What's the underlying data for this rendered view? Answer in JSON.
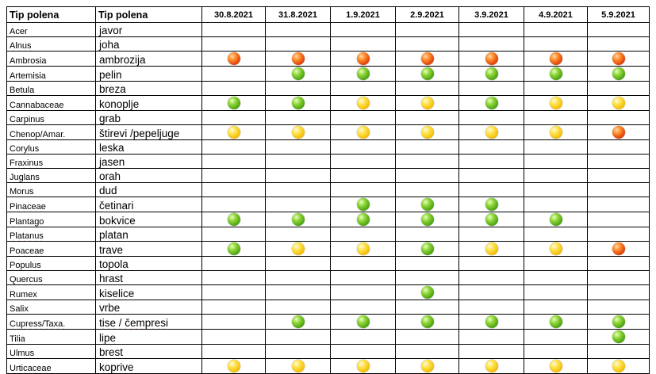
{
  "header": {
    "latin": "Tip polena",
    "local": "Tip polena",
    "dates": [
      "30.8.2021",
      "31.8.2021",
      "1.9.2021",
      "2.9.2021",
      "3.9.2021",
      "4.9.2021",
      "5.9.2021"
    ]
  },
  "legend_colors": {
    "high": "#e8501a",
    "medium": "#f7c91c",
    "low": "#5cb31a"
  },
  "rows": [
    {
      "latin": "Acer",
      "local": "javor",
      "levels": [
        "",
        "",
        "",
        "",
        "",
        "",
        ""
      ]
    },
    {
      "latin": "Alnus",
      "local": "joha",
      "levels": [
        "",
        "",
        "",
        "",
        "",
        "",
        ""
      ]
    },
    {
      "latin": "Ambrosia",
      "local": "ambrozija",
      "levels": [
        "high",
        "high",
        "high",
        "high",
        "high",
        "high",
        "high"
      ]
    },
    {
      "latin": "Artemisia",
      "local": "pelin",
      "levels": [
        "",
        "low",
        "low",
        "low",
        "low",
        "low",
        "low"
      ]
    },
    {
      "latin": "Betula",
      "local": "breza",
      "levels": [
        "",
        "",
        "",
        "",
        "",
        "",
        ""
      ]
    },
    {
      "latin": "Cannabaceae",
      "local": "konoplje",
      "levels": [
        "low",
        "low",
        "medium",
        "medium",
        "low",
        "medium",
        "medium"
      ]
    },
    {
      "latin": "Carpinus",
      "local": "grab",
      "levels": [
        "",
        "",
        "",
        "",
        "",
        "",
        ""
      ]
    },
    {
      "latin": "Chenop/Amar.",
      "local": "štirevi /pepeljuge",
      "levels": [
        "medium",
        "medium",
        "medium",
        "medium",
        "medium",
        "medium",
        "high"
      ]
    },
    {
      "latin": "Corylus",
      "local": "leska",
      "levels": [
        "",
        "",
        "",
        "",
        "",
        "",
        ""
      ]
    },
    {
      "latin": "Fraxinus",
      "local": "jasen",
      "levels": [
        "",
        "",
        "",
        "",
        "",
        "",
        ""
      ]
    },
    {
      "latin": "Juglans",
      "local": "orah",
      "levels": [
        "",
        "",
        "",
        "",
        "",
        "",
        ""
      ]
    },
    {
      "latin": "Morus",
      "local": "dud",
      "levels": [
        "",
        "",
        "",
        "",
        "",
        "",
        ""
      ]
    },
    {
      "latin": "Pinaceae",
      "local": "četinari",
      "levels": [
        "",
        "",
        "low",
        "low",
        "low",
        "",
        ""
      ]
    },
    {
      "latin": "Plantago",
      "local": "bokvice",
      "levels": [
        "low",
        "low",
        "low",
        "low",
        "low",
        "low",
        ""
      ]
    },
    {
      "latin": "Platanus",
      "local": "platan",
      "levels": [
        "",
        "",
        "",
        "",
        "",
        "",
        ""
      ]
    },
    {
      "latin": "Poaceae",
      "local": "trave",
      "levels": [
        "low",
        "medium",
        "medium",
        "low",
        "medium",
        "medium",
        "high"
      ]
    },
    {
      "latin": "Populus",
      "local": "topola",
      "levels": [
        "",
        "",
        "",
        "",
        "",
        "",
        ""
      ]
    },
    {
      "latin": "Quercus",
      "local": "hrast",
      "levels": [
        "",
        "",
        "",
        "",
        "",
        "",
        ""
      ]
    },
    {
      "latin": "Rumex",
      "local": "kiselice",
      "levels": [
        "",
        "",
        "",
        "low",
        "",
        "",
        ""
      ]
    },
    {
      "latin": "Salix",
      "local": "vrbe",
      "levels": [
        "",
        "",
        "",
        "",
        "",
        "",
        ""
      ]
    },
    {
      "latin": "Cupress/Taxa.",
      "local": "tise / čempresi",
      "levels": [
        "",
        "low",
        "low",
        "low",
        "low",
        "low",
        "low"
      ]
    },
    {
      "latin": "Tilia",
      "local": "lipe",
      "levels": [
        "",
        "",
        "",
        "",
        "",
        "",
        "low"
      ]
    },
    {
      "latin": "Ulmus",
      "local": "brest",
      "levels": [
        "",
        "",
        "",
        "",
        "",
        "",
        ""
      ]
    },
    {
      "latin": "Urticaceae",
      "local": "koprive",
      "levels": [
        "medium",
        "medium",
        "medium",
        "medium",
        "medium",
        "medium",
        "medium"
      ]
    }
  ]
}
